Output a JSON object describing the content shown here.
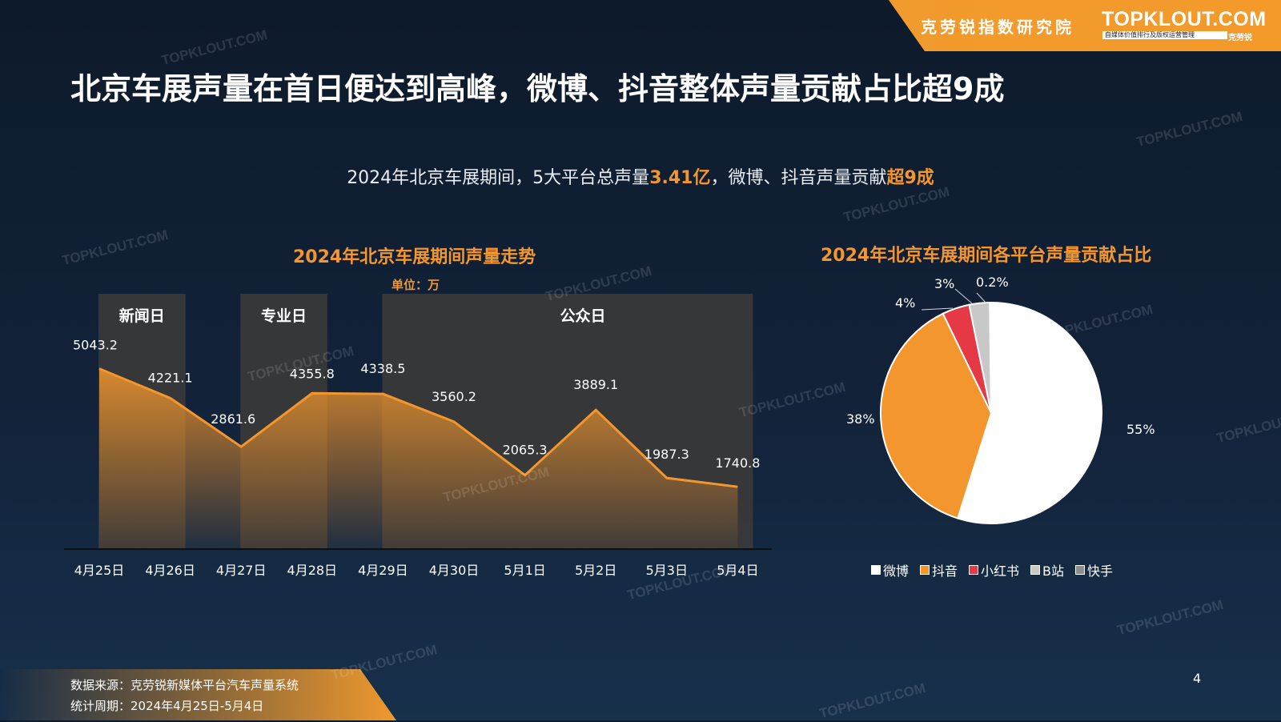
{
  "header": {
    "brand_cn": "克劳锐指数研究院",
    "brand_logo": "TOPKLOUT.COM",
    "brand_tagline": "自媒体价值排行及版权运营管理",
    "brand_tagline_cn": "克劳锐"
  },
  "title": "北京车展声量在首日便达到高峰，微博、抖音整体声量贡献占比超9成",
  "summary": {
    "pre": "2024年北京车展期间，5大平台总声量",
    "value1": "3.41亿",
    "mid": "，微博、抖音声量贡献",
    "value2": "超9成"
  },
  "watermark_text": "TOPKLOUT.COM",
  "footer": {
    "source": "数据来源：克劳锐新媒体平台汽车声量系统",
    "period": "统计周期：2024年4月25日-5月4日",
    "page_number": "4"
  },
  "colors": {
    "accent": "#f3962d",
    "background": "#122239",
    "phase_box": "#3b3a38",
    "weibo": "#ffffff",
    "douyin": "#f3962d",
    "xiaohongshu": "#e63946",
    "bilibili": "#c8c8c8",
    "kuaishou": "#8c8c8c"
  },
  "chart_data": [
    {
      "type": "area",
      "title": "2024年北京车展期间声量走势",
      "unit": "单位：万",
      "categories": [
        "4月25日",
        "4月26日",
        "4月27日",
        "4月28日",
        "4月29日",
        "4月30日",
        "5月1日",
        "5月2日",
        "5月3日",
        "5月4日"
      ],
      "values": [
        5043.2,
        4221.1,
        2861.6,
        4355.8,
        4338.5,
        3560.2,
        2065.3,
        3889.1,
        1987.3,
        1740.8
      ],
      "value_labels": [
        "5043.2",
        "4221.1",
        "2861.6",
        "4355.8",
        "4338.5",
        "3560.2",
        "2065.3",
        "3889.1",
        "1987.3",
        "1740.8"
      ],
      "phases": [
        {
          "label": "新闻日",
          "from": 0,
          "to": 1
        },
        {
          "label": "专业日",
          "from": 2,
          "to": 3
        },
        {
          "label": "公众日",
          "from": 4,
          "to": 9
        }
      ],
      "grid": false
    },
    {
      "type": "pie",
      "title": "2024年北京车展期间各平台声量贡献占比",
      "labels": [
        "微博",
        "抖音",
        "小红书",
        "B站",
        "快手"
      ],
      "values": [
        55,
        38,
        4,
        3,
        0.2
      ],
      "value_labels": [
        "55%",
        "38%",
        "4%",
        "3%",
        "0.2%"
      ],
      "legend_position": "bottom"
    }
  ]
}
